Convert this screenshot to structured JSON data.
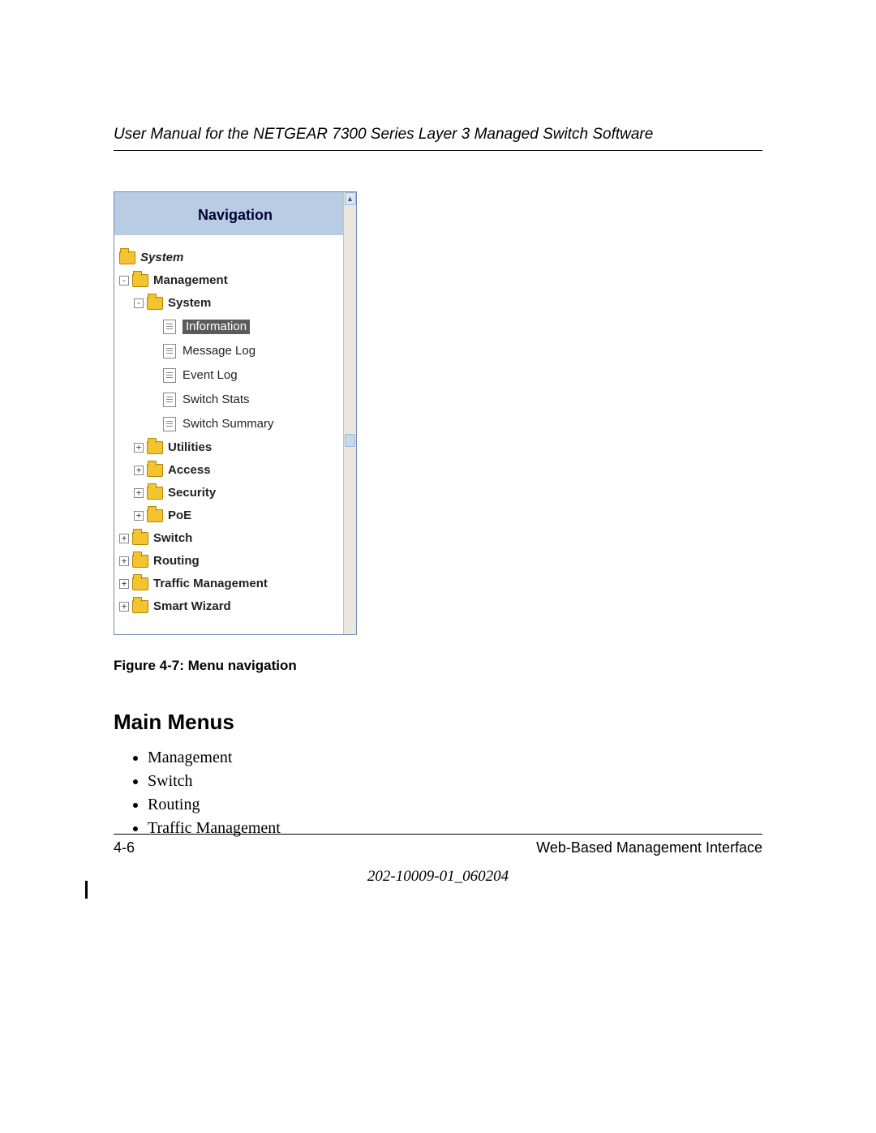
{
  "header": {
    "title": "User Manual for the NETGEAR 7300 Series Layer 3 Managed Switch Software"
  },
  "navWidget": {
    "title": "Navigation",
    "headerBg": "#b8cce4",
    "bodyBg": "#ffffff",
    "borderColor": "#6d8bb3",
    "folderColor": "#f4c430",
    "selectedBg": "#5b5b5b",
    "selectedFg": "#ffffff",
    "tree": {
      "system": {
        "label": "System",
        "state": "open",
        "bold": true,
        "italic": true
      },
      "management": {
        "label": "Management",
        "state": "open",
        "bold": true,
        "expander": "-"
      },
      "systemSub": {
        "label": "System",
        "state": "open",
        "bold": true,
        "expander": "-"
      },
      "leaves": [
        {
          "label": "Information",
          "selected": true
        },
        {
          "label": "Message Log",
          "selected": false
        },
        {
          "label": "Event Log",
          "selected": false
        },
        {
          "label": "Switch Stats",
          "selected": false
        },
        {
          "label": "Switch Summary",
          "selected": false
        }
      ],
      "closedL2": [
        {
          "label": "Utilities"
        },
        {
          "label": "Access"
        },
        {
          "label": "Security"
        },
        {
          "label": "PoE"
        }
      ],
      "closedL1": [
        {
          "label": "Switch"
        },
        {
          "label": "Routing"
        },
        {
          "label": "Traffic Management"
        },
        {
          "label": "Smart Wizard"
        }
      ]
    },
    "scrollbar": {
      "trackColor": "#ebe7dc",
      "arrowColor": "#395a8a",
      "thumbTopPx": 280
    }
  },
  "caption": "Figure 4-7:  Menu navigation",
  "sectionHeading": "Main Menus",
  "bullets": [
    "Management",
    "Switch",
    "Routing",
    "Traffic Management"
  ],
  "footer": {
    "pageNum": "4-6",
    "sectionTitle": "Web-Based Management Interface",
    "docId": "202-10009-01_060204"
  }
}
